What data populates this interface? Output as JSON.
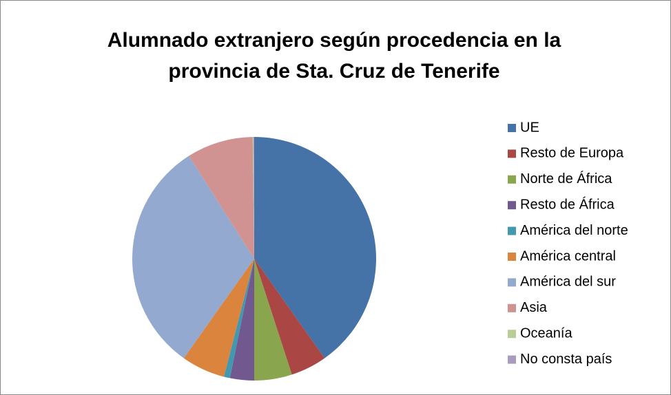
{
  "chart_data": {
    "type": "pie",
    "title": [
      "Alumnado extranjero según procedencia en la",
      "provincia de Sta. Cruz de Tenerife"
    ],
    "categories": [
      "UE",
      "Resto de Europa",
      "Norte de África",
      "Resto de África",
      "América del norte",
      "América central",
      "América del sur",
      "Asia",
      "Oceanía",
      "No consta país"
    ],
    "values": [
      40.2,
      4.8,
      5.0,
      3.2,
      0.8,
      5.8,
      31.2,
      8.8,
      0.1,
      0.1
    ],
    "colors": [
      "#4572A7",
      "#AA4643",
      "#89A54E",
      "#71588F",
      "#4198AF",
      "#DB843D",
      "#93A9CF",
      "#D19392",
      "#B9CD96",
      "#A99BBD"
    ],
    "legend": "right"
  }
}
